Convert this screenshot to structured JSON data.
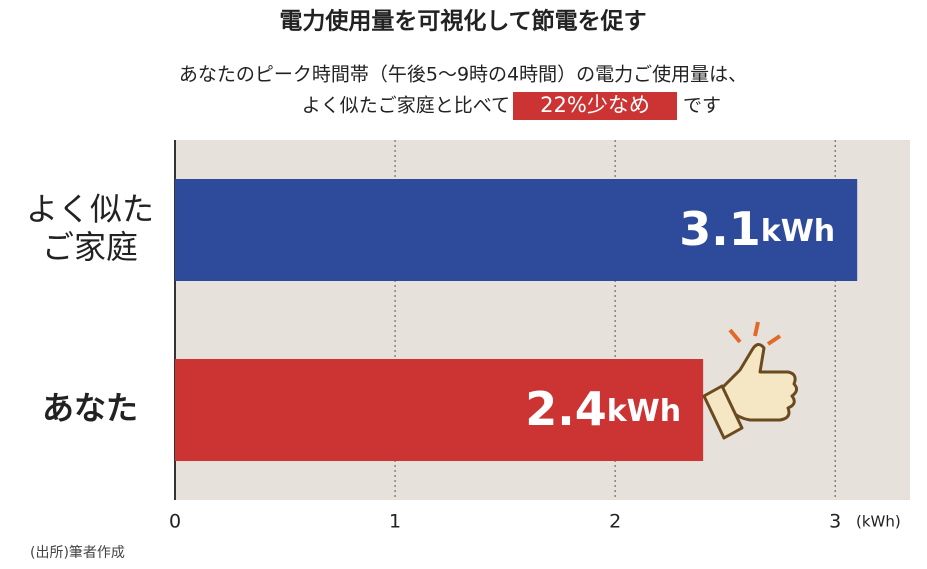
{
  "chart_data": {
    "type": "barh",
    "title": "電力使用量を可視化して節電を促す",
    "subtitle": [
      "あなたのピーク時間帯（午後5〜9時の4時間）の電力ご使用量は、",
      "よく似たご家庭と比べて"
    ],
    "highlight": "22%少なめ",
    "subtitle_end": "です",
    "categories": [
      "よく似た\nご家庭",
      "あなた"
    ],
    "series": [
      {
        "colors": [
          "#2e4b9b",
          "#cc3434"
        ],
        "values": [
          3.1,
          2.4
        ],
        "value_labels": [
          "3.1kWh",
          "2.4kWh"
        ]
      }
    ],
    "xlim": [
      0,
      3.34
    ],
    "xticks": [
      0,
      1,
      2,
      3
    ],
    "xlabel": "(kWh)",
    "grid": true,
    "source": "(出所)筆者作成"
  }
}
